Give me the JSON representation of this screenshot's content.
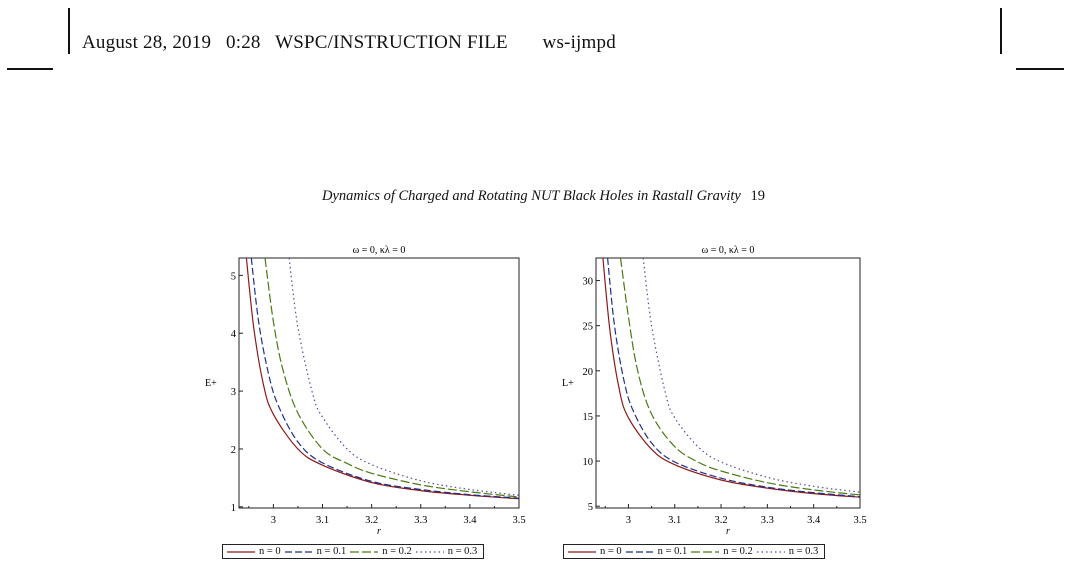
{
  "header": {
    "date": "August 28, 2019",
    "time": "0:28",
    "file_type": "WSPC/INSTRUCTION FILE",
    "file_name": "ws-ijmpd"
  },
  "running_head": {
    "title": "Dynamics of Charged and Rotating NUT Black Holes in Rastall Gravity",
    "page_number": "19"
  },
  "colors": {
    "n0": "#8b1a1a",
    "n01": "#1f2f8f",
    "n02": "#4a7a10",
    "n03": "#5a4a9a"
  },
  "chart_data": [
    {
      "type": "line",
      "title": "ω = 0, κλ = 0",
      "xlabel": "r",
      "ylabel": "E+",
      "xlim": [
        2.93,
        3.5
      ],
      "ylim": [
        0.98,
        5.3
      ],
      "xticks": [
        3,
        3.1,
        3.2,
        3.3,
        3.4,
        3.5
      ],
      "xtick_labels": [
        "3",
        "3.1",
        "3.2",
        "3.3",
        "3.4",
        "3.5"
      ],
      "yticks": [
        1,
        2,
        3,
        4,
        5
      ],
      "ytick_labels": [
        "1",
        "2",
        "3",
        "4",
        "5"
      ],
      "series": [
        {
          "name": "n = 0",
          "style": "solid",
          "x": [
            2.945,
            2.96,
            2.98,
            3.0,
            3.05,
            3.1,
            3.2,
            3.3,
            3.4,
            3.5
          ],
          "y": [
            5.3,
            4.1,
            3.1,
            2.6,
            2.0,
            1.72,
            1.42,
            1.28,
            1.2,
            1.14
          ]
        },
        {
          "name": "n = 0.1",
          "style": "dash",
          "x": [
            2.955,
            2.97,
            2.99,
            3.01,
            3.05,
            3.1,
            3.2,
            3.3,
            3.4,
            3.5
          ],
          "y": [
            5.3,
            4.2,
            3.3,
            2.75,
            2.12,
            1.76,
            1.44,
            1.3,
            1.21,
            1.15
          ]
        },
        {
          "name": "n = 0.2",
          "style": "longdash",
          "x": [
            2.983,
            3.0,
            3.02,
            3.05,
            3.1,
            3.15,
            3.2,
            3.3,
            3.4,
            3.5
          ],
          "y": [
            5.3,
            4.2,
            3.35,
            2.62,
            2.0,
            1.75,
            1.58,
            1.38,
            1.26,
            1.17
          ]
        },
        {
          "name": "n = 0.3",
          "style": "dot",
          "x": [
            3.032,
            3.05,
            3.08,
            3.1,
            3.15,
            3.2,
            3.3,
            3.4,
            3.5
          ],
          "y": [
            5.3,
            4.1,
            2.95,
            2.55,
            2.0,
            1.73,
            1.45,
            1.3,
            1.2
          ]
        }
      ]
    },
    {
      "type": "line",
      "title": "ω = 0, κλ = 0",
      "xlabel": "r",
      "ylabel": "L+",
      "xlim": [
        2.93,
        3.5
      ],
      "ylim": [
        4.8,
        32.5
      ],
      "xticks": [
        3,
        3.1,
        3.2,
        3.3,
        3.4,
        3.5
      ],
      "xtick_labels": [
        "3",
        "3.1",
        "3.2",
        "3.3",
        "3.4",
        "3.5"
      ],
      "yticks": [
        5,
        10,
        15,
        20,
        25,
        30
      ],
      "ytick_labels": [
        "5",
        "10",
        "15",
        "20",
        "25",
        "30"
      ],
      "series": [
        {
          "name": "n = 0",
          "style": "solid",
          "x": [
            2.945,
            2.96,
            2.98,
            3.0,
            3.05,
            3.1,
            3.2,
            3.3,
            3.4,
            3.5
          ],
          "y": [
            32.5,
            24.5,
            18.0,
            14.8,
            11.3,
            9.6,
            7.9,
            7.0,
            6.4,
            6.0
          ]
        },
        {
          "name": "n = 0.1",
          "style": "dash",
          "x": [
            2.955,
            2.97,
            2.99,
            3.01,
            3.05,
            3.1,
            3.2,
            3.3,
            3.4,
            3.5
          ],
          "y": [
            32.5,
            25.0,
            19.0,
            15.6,
            12.0,
            9.9,
            8.1,
            7.1,
            6.5,
            6.05
          ]
        },
        {
          "name": "n = 0.2",
          "style": "longdash",
          "x": [
            2.983,
            3.0,
            3.02,
            3.05,
            3.1,
            3.15,
            3.2,
            3.3,
            3.4,
            3.5
          ],
          "y": [
            32.5,
            26.0,
            20.0,
            15.2,
            11.6,
            9.9,
            8.9,
            7.6,
            6.8,
            6.25
          ]
        },
        {
          "name": "n = 0.3",
          "style": "dot",
          "x": [
            3.032,
            3.05,
            3.08,
            3.1,
            3.15,
            3.2,
            3.3,
            3.4,
            3.5
          ],
          "y": [
            32.5,
            25.0,
            17.5,
            14.8,
            11.6,
            9.9,
            8.2,
            7.2,
            6.55
          ]
        }
      ]
    }
  ]
}
